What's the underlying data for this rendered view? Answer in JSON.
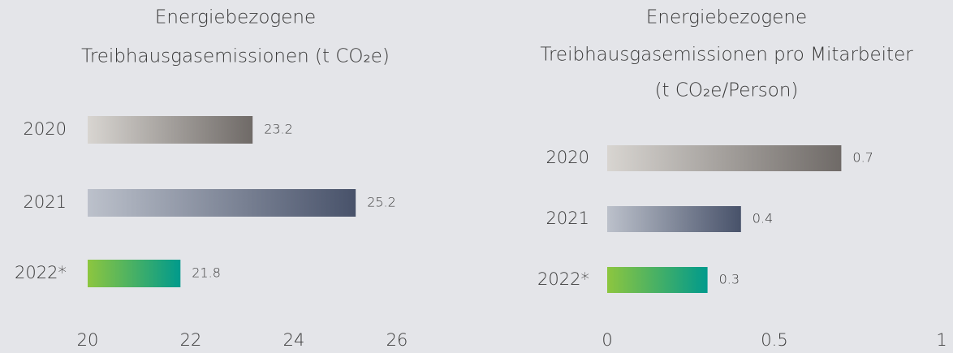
{
  "chart_data": [
    {
      "type": "barh",
      "title": [
        "Energiebezogene",
        "Treibhausgasemissionen (t CO₂e)"
      ],
      "categories": [
        "2020",
        "2021",
        "2022*"
      ],
      "values": [
        23.2,
        25.2,
        21.8
      ],
      "colors": [
        [
          "#d8d5d1",
          "#6f6a67"
        ],
        [
          "#bcc1cb",
          "#48526a"
        ],
        [
          "#8dc63f",
          "#009a8c"
        ]
      ],
      "xlim": [
        20,
        26
      ],
      "xticks": [
        20,
        22,
        24,
        26
      ]
    },
    {
      "type": "barh",
      "title": [
        "Energiebezogene",
        "Treibhausgasemissionen pro Mitarbeiter",
        "(t CO₂e/Person)"
      ],
      "categories": [
        "2020",
        "2021",
        "2022*"
      ],
      "values": [
        0.7,
        0.4,
        0.3
      ],
      "colors": [
        [
          "#d8d5d1",
          "#6f6a67"
        ],
        [
          "#bcc1cb",
          "#48526a"
        ],
        [
          "#8dc63f",
          "#009a8c"
        ]
      ],
      "xlim": [
        0,
        1
      ],
      "xticks": [
        0,
        0.5,
        1
      ]
    }
  ]
}
